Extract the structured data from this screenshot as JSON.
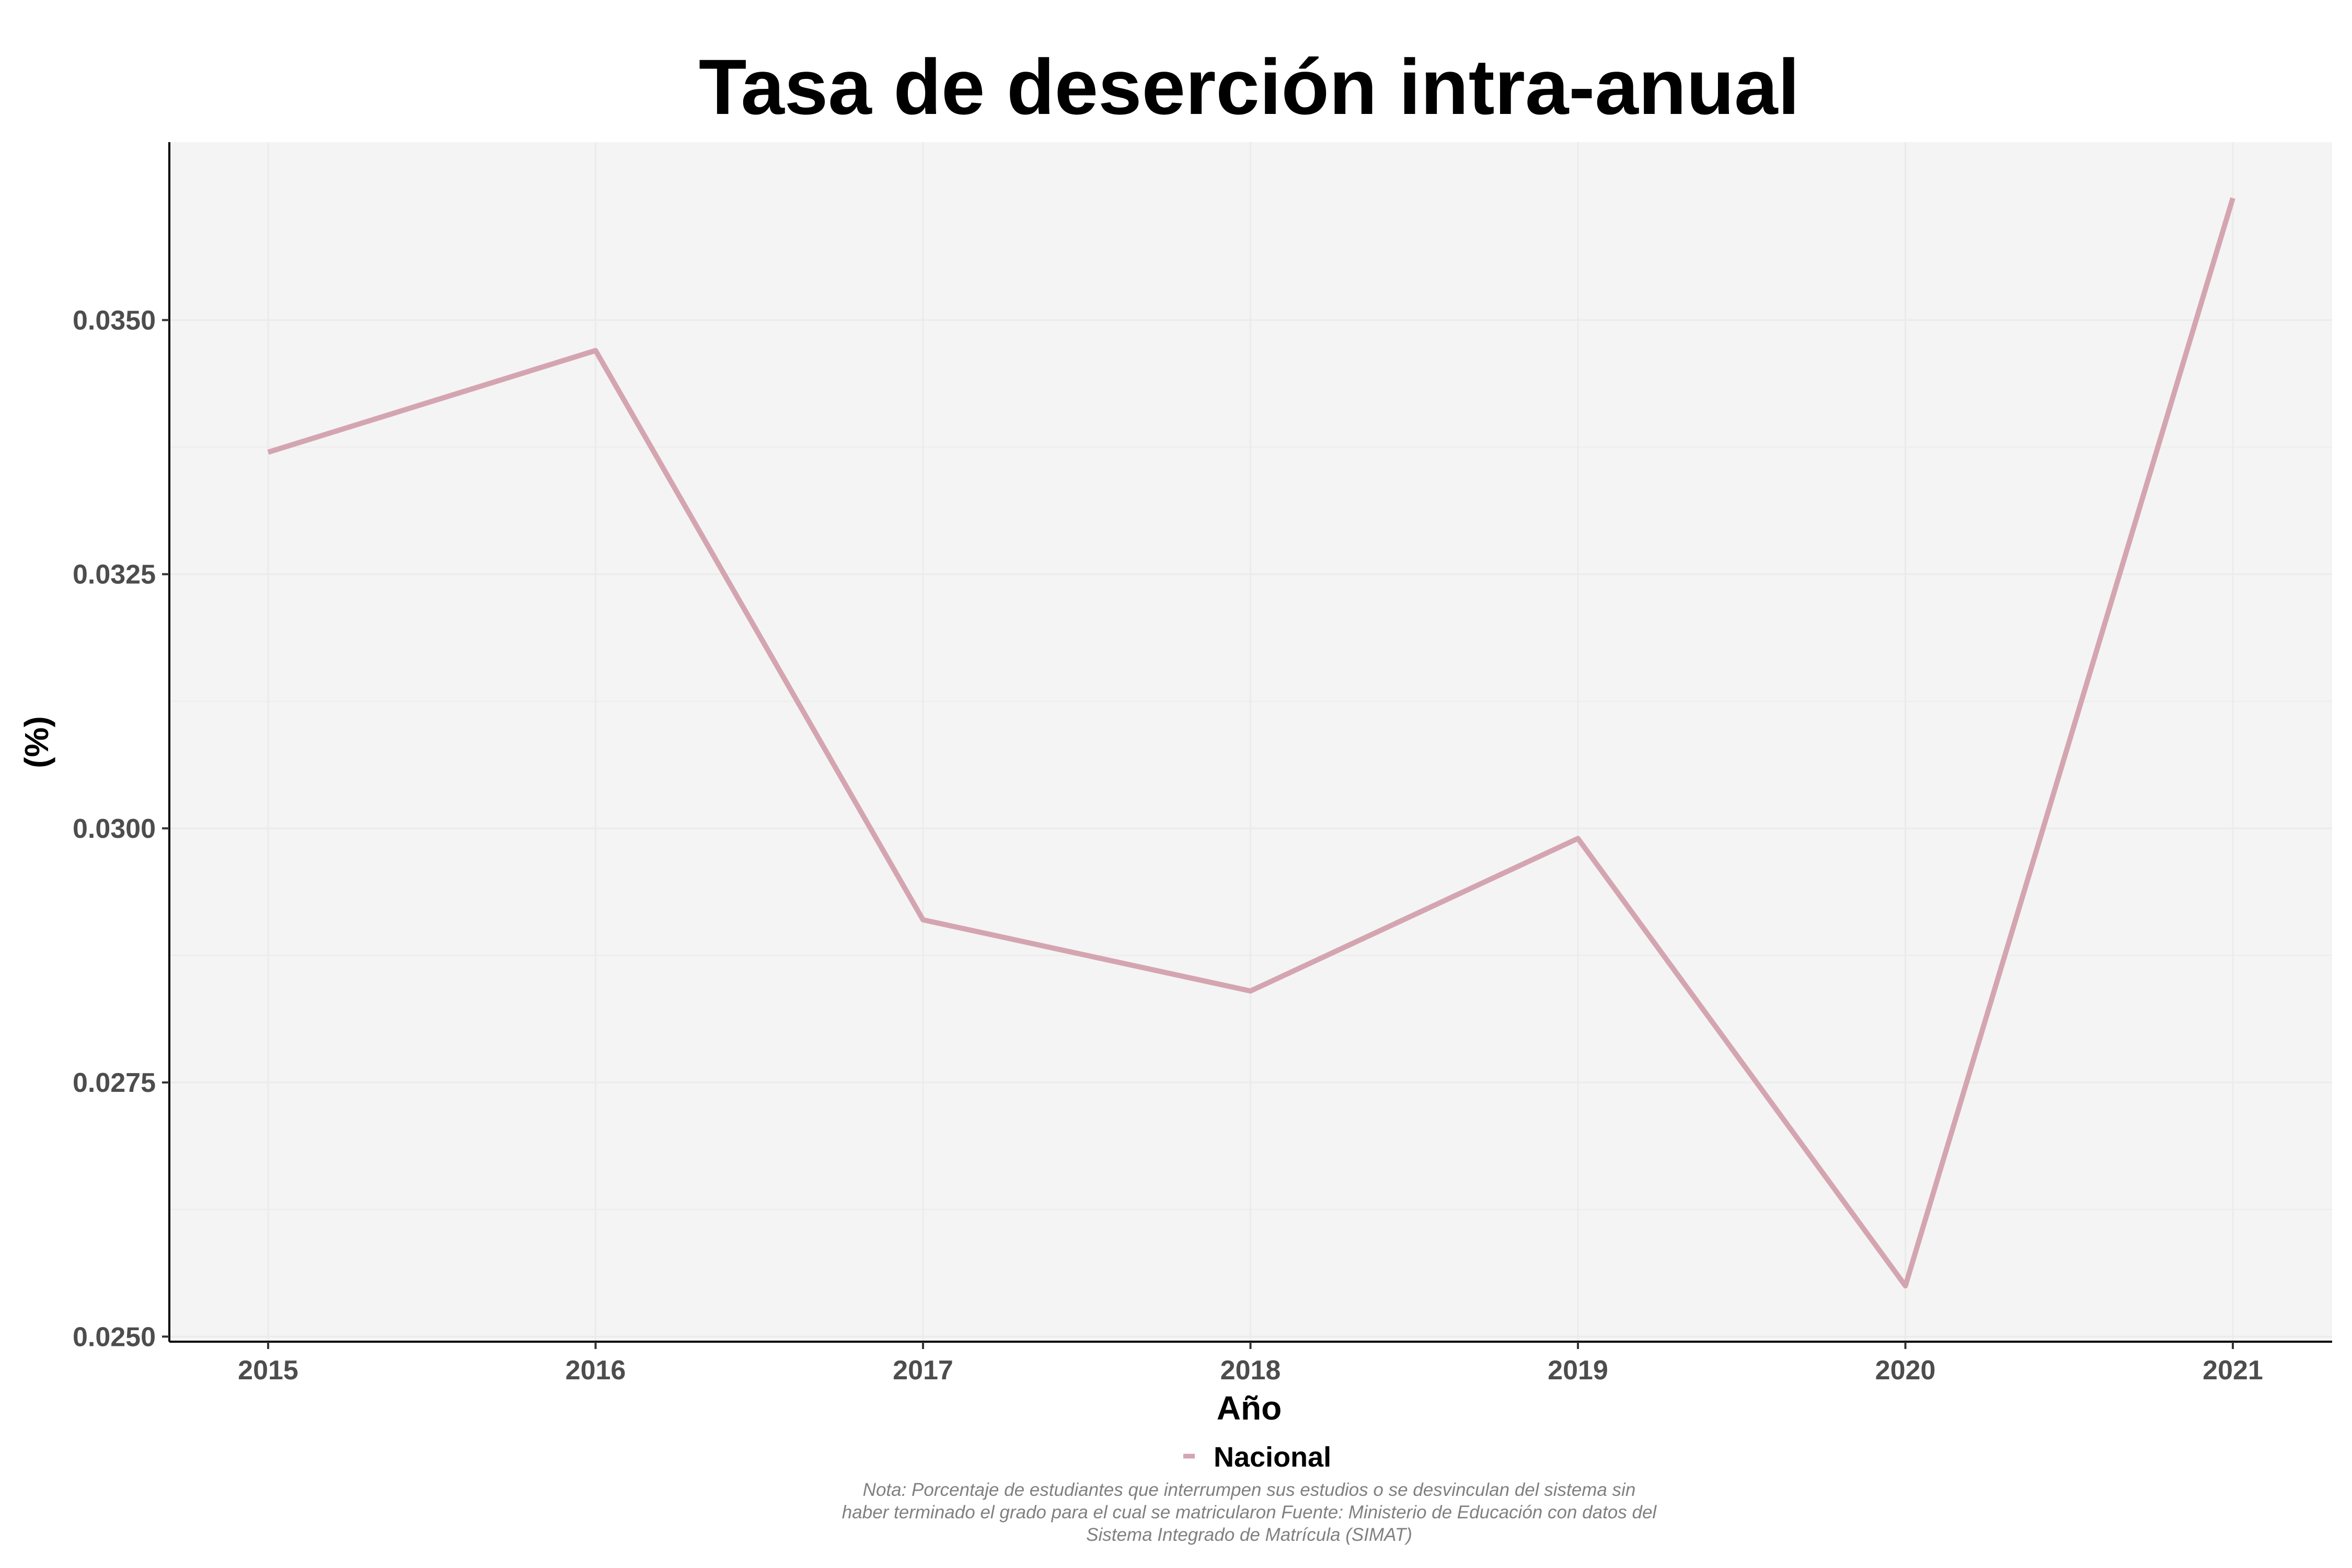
{
  "chart_data": {
    "type": "line",
    "title": "Tasa de deserción intra-anual",
    "xlabel": "Año",
    "ylabel": "(%)",
    "x": [
      "2015",
      "2016",
      "2017",
      "2018",
      "2019",
      "2020",
      "2021"
    ],
    "series": [
      {
        "name": "Nacional",
        "values": [
          0.0337,
          0.0347,
          0.0291,
          0.0284,
          0.0299,
          0.0255,
          0.0362
        ],
        "color": "#d4a5b0"
      }
    ],
    "ylim": [
      0.02495,
      0.03675
    ],
    "yticks": [
      0.025,
      0.0275,
      0.03,
      0.0325,
      0.035
    ],
    "ytick_labels": [
      "0.0250",
      "0.0275",
      "0.0300",
      "0.0325",
      "0.0350"
    ],
    "grid": true,
    "panel_background": "#f4f4f4",
    "legend_position": "bottom",
    "caption": [
      "Nota: Porcentaje de estudiantes que interrumpen sus estudios o se desvinculan del sistema sin",
      "haber terminado el grado para el cual se matricularon Fuente: Ministerio de Educación con datos del",
      "Sistema Integrado de Matrícula (SIMAT)"
    ]
  }
}
